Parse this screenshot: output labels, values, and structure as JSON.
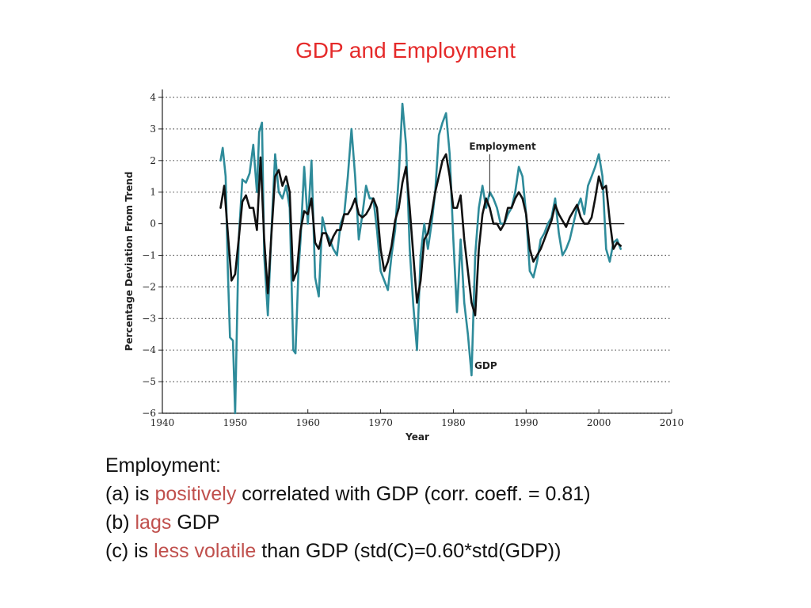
{
  "slide": {
    "title": "GDP and Employment"
  },
  "notes": {
    "heading": "Employment:",
    "line_a": {
      "prefix": "(a) is ",
      "highlight": "positively",
      "suffix": " correlated with GDP (corr. coeff. = 0.81)"
    },
    "line_b": {
      "prefix": "(b) ",
      "highlight": "lags",
      "suffix": " GDP"
    },
    "line_c": {
      "prefix": "(c) is ",
      "highlight": "less volatile",
      "suffix": " than GDP (std(C)=0.60*std(GDP))"
    },
    "highlight_color": "#c0504d"
  },
  "chart_data": {
    "type": "line",
    "title": "",
    "xlabel": "Year",
    "ylabel": "Percentage Deviation From Trend",
    "xlim": [
      1940,
      2010
    ],
    "ylim": [
      -6,
      4
    ],
    "x_ticks": [
      1940,
      1950,
      1960,
      1970,
      1980,
      1990,
      2000,
      2010
    ],
    "x_tick_labels": [
      "1940",
      "1950",
      "1960",
      "1970",
      "1980",
      "1990",
      "2000",
      "2010"
    ],
    "y_ticks": [
      4,
      3,
      2,
      1,
      0,
      -1,
      -2,
      -3,
      -4,
      -5,
      -6
    ],
    "y_tick_labels": [
      "4",
      "3",
      "2",
      "1",
      "0",
      "−1",
      "−2",
      "−3",
      "−4",
      "−5",
      "−6"
    ],
    "grid": "horizontal dotted",
    "zero_line": true,
    "annotations": [
      {
        "text": "Employment",
        "series": "Employment",
        "x": 1985,
        "y": 2.1
      },
      {
        "text": "GDP",
        "series": "GDP",
        "x": 1982.9,
        "y": -4.5
      }
    ],
    "series": [
      {
        "name": "GDP",
        "color": "#2e8b9a",
        "x": [
          1948.0,
          1948.3,
          1948.7,
          1949.0,
          1949.3,
          1949.7,
          1950.0,
          1950.5,
          1951.0,
          1951.5,
          1952.0,
          1952.5,
          1953.0,
          1953.3,
          1953.7,
          1954.0,
          1954.5,
          1955.0,
          1955.5,
          1956.0,
          1956.5,
          1957.0,
          1957.5,
          1958.0,
          1958.3,
          1958.7,
          1959.0,
          1959.5,
          1960.0,
          1960.5,
          1961.0,
          1961.5,
          1962.0,
          1962.5,
          1963.0,
          1963.5,
          1964.0,
          1964.5,
          1965.0,
          1965.5,
          1966.0,
          1966.5,
          1967.0,
          1967.5,
          1968.0,
          1968.5,
          1969.0,
          1969.5,
          1970.0,
          1970.5,
          1971.0,
          1971.5,
          1972.0,
          1972.5,
          1973.0,
          1973.5,
          1974.0,
          1974.5,
          1975.0,
          1975.5,
          1976.0,
          1976.5,
          1977.0,
          1977.5,
          1978.0,
          1978.5,
          1979.0,
          1979.5,
          1980.0,
          1980.5,
          1981.0,
          1981.5,
          1982.0,
          1982.5,
          1983.0,
          1983.5,
          1984.0,
          1984.5,
          1985.0,
          1985.5,
          1986.0,
          1986.5,
          1987.0,
          1987.5,
          1988.0,
          1988.5,
          1989.0,
          1989.5,
          1990.0,
          1990.5,
          1991.0,
          1991.5,
          1992.0,
          1992.5,
          1993.0,
          1993.5,
          1994.0,
          1994.5,
          1995.0,
          1995.5,
          1996.0,
          1996.5,
          1997.0,
          1997.5,
          1998.0,
          1998.5,
          1999.0,
          1999.5,
          2000.0,
          2000.5,
          2001.0,
          2001.5,
          2002.0,
          2002.5,
          2003.0
        ],
        "y": [
          2.0,
          2.4,
          1.5,
          -1.5,
          -3.6,
          -3.7,
          -6.0,
          -0.5,
          1.4,
          1.3,
          1.6,
          2.5,
          1.0,
          2.9,
          3.2,
          -1.0,
          -2.9,
          -0.2,
          2.2,
          1.0,
          0.8,
          1.2,
          0.5,
          -4.0,
          -4.1,
          -1.5,
          -0.5,
          1.8,
          0.0,
          2.0,
          -1.7,
          -2.3,
          0.2,
          -0.3,
          -0.5,
          -0.8,
          -1.0,
          0.0,
          0.3,
          1.5,
          3.0,
          1.5,
          -0.5,
          0.3,
          1.2,
          0.8,
          0.8,
          -0.2,
          -1.5,
          -1.8,
          -2.1,
          -1.0,
          -0.2,
          1.5,
          3.8,
          2.5,
          -0.8,
          -2.6,
          -4.0,
          -1.0,
          0.0,
          -0.8,
          0.0,
          1.0,
          2.8,
          3.2,
          3.5,
          2.2,
          -0.5,
          -2.8,
          -0.5,
          -2.5,
          -3.5,
          -4.8,
          -1.0,
          0.5,
          1.2,
          0.5,
          1.0,
          0.8,
          0.5,
          0.0,
          0.0,
          0.3,
          0.5,
          1.0,
          1.8,
          1.5,
          0.3,
          -1.5,
          -1.7,
          -1.2,
          -0.5,
          -0.3,
          0.0,
          0.2,
          0.8,
          -0.3,
          -1.0,
          -0.8,
          -0.5,
          0.0,
          0.5,
          0.8,
          0.3,
          1.2,
          1.5,
          1.8,
          2.2,
          1.5,
          -0.8,
          -1.2,
          -0.6,
          -0.5,
          -0.8
        ]
      },
      {
        "name": "Employment",
        "color": "#111111",
        "x": [
          1948.0,
          1948.5,
          1949.0,
          1949.5,
          1950.0,
          1950.5,
          1951.0,
          1951.5,
          1952.0,
          1952.5,
          1953.0,
          1953.5,
          1954.0,
          1954.5,
          1955.0,
          1955.5,
          1956.0,
          1956.5,
          1957.0,
          1957.5,
          1958.0,
          1958.5,
          1959.0,
          1959.5,
          1960.0,
          1960.5,
          1961.0,
          1961.5,
          1962.0,
          1962.5,
          1963.0,
          1963.5,
          1964.0,
          1964.5,
          1965.0,
          1965.5,
          1966.0,
          1966.5,
          1967.0,
          1967.5,
          1968.0,
          1968.5,
          1969.0,
          1969.5,
          1970.0,
          1970.5,
          1971.0,
          1971.5,
          1972.0,
          1972.5,
          1973.0,
          1973.5,
          1974.0,
          1974.5,
          1975.0,
          1975.5,
          1976.0,
          1976.5,
          1977.0,
          1977.5,
          1978.0,
          1978.5,
          1979.0,
          1979.5,
          1980.0,
          1980.5,
          1981.0,
          1981.5,
          1982.0,
          1982.5,
          1983.0,
          1983.5,
          1984.0,
          1984.5,
          1985.0,
          1985.5,
          1986.0,
          1986.5,
          1987.0,
          1987.5,
          1988.0,
          1988.5,
          1989.0,
          1989.5,
          1990.0,
          1990.5,
          1991.0,
          1991.5,
          1992.0,
          1992.5,
          1993.0,
          1993.5,
          1994.0,
          1994.5,
          1995.0,
          1995.5,
          1996.0,
          1996.5,
          1997.0,
          1997.5,
          1998.0,
          1998.5,
          1999.0,
          1999.5,
          2000.0,
          2000.5,
          2001.0,
          2001.5,
          2002.0,
          2002.5,
          2003.0
        ],
        "y": [
          0.5,
          1.2,
          -0.3,
          -1.8,
          -1.6,
          -0.5,
          0.7,
          0.9,
          0.5,
          0.5,
          -0.2,
          2.1,
          -0.5,
          -2.2,
          -0.3,
          1.5,
          1.7,
          1.2,
          1.5,
          1.0,
          -1.8,
          -1.5,
          -0.2,
          0.4,
          0.3,
          0.8,
          -0.6,
          -0.8,
          -0.3,
          -0.3,
          -0.7,
          -0.4,
          -0.2,
          -0.2,
          0.3,
          0.3,
          0.5,
          0.8,
          0.3,
          0.2,
          0.3,
          0.5,
          0.8,
          0.5,
          -0.8,
          -1.5,
          -1.2,
          -0.7,
          0.1,
          0.5,
          1.3,
          1.8,
          0.5,
          -1.0,
          -2.5,
          -1.8,
          -0.5,
          -0.3,
          0.3,
          1.0,
          1.5,
          2.0,
          2.2,
          1.5,
          0.5,
          0.5,
          0.9,
          -0.5,
          -1.5,
          -2.5,
          -2.9,
          -0.8,
          0.3,
          0.8,
          0.5,
          0.0,
          0.0,
          -0.2,
          0.0,
          0.5,
          0.5,
          0.8,
          1.0,
          0.8,
          0.3,
          -0.8,
          -1.2,
          -1.0,
          -0.8,
          -0.5,
          -0.2,
          0.1,
          0.6,
          0.3,
          0.1,
          -0.1,
          0.2,
          0.4,
          0.6,
          0.2,
          0.0,
          0.0,
          0.2,
          0.8,
          1.5,
          1.1,
          1.2,
          0.1,
          -0.8,
          -0.6,
          -0.7
        ]
      }
    ]
  }
}
